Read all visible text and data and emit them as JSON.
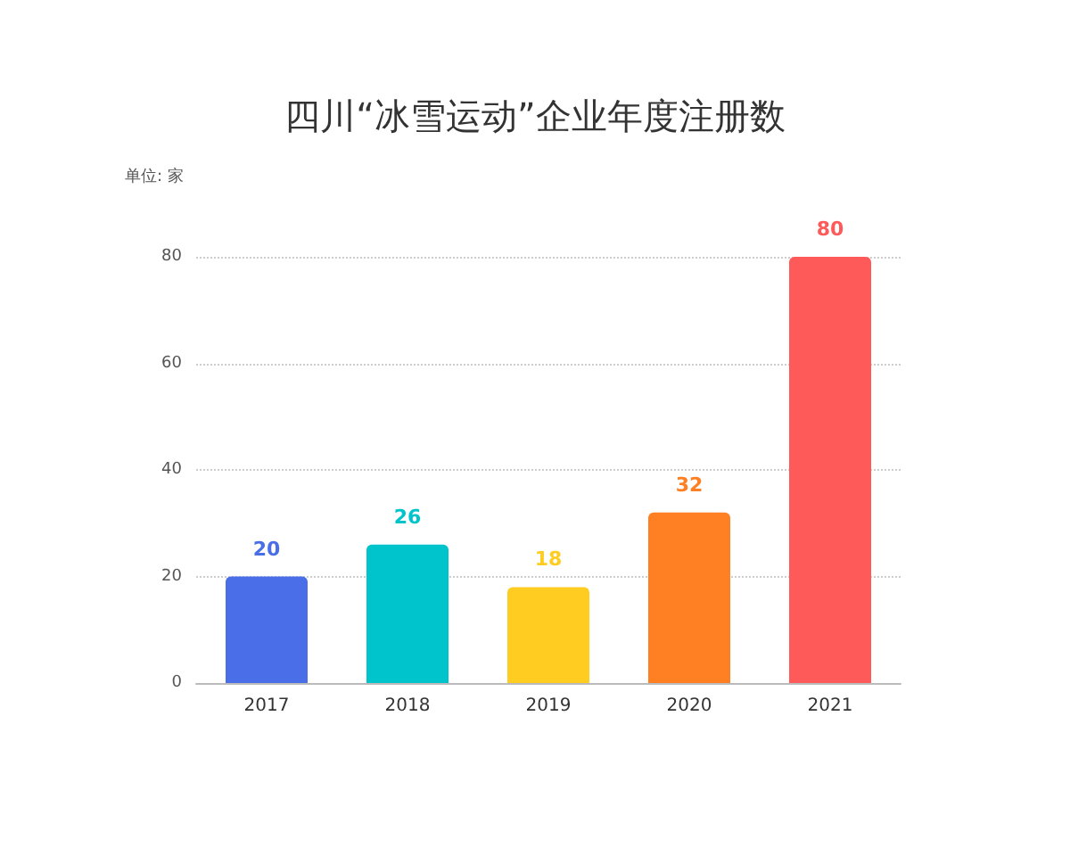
{
  "chart_data": {
    "type": "bar",
    "title": "四川“冰雪运动”企业年度注册数",
    "ylabel": "单位: 家",
    "categories": [
      "2017",
      "2018",
      "2019",
      "2020",
      "2021"
    ],
    "values": [
      20,
      26,
      18,
      32,
      80
    ],
    "colors": [
      "#4a6ee8",
      "#00c4cc",
      "#ffcc22",
      "#ff8022",
      "#ff5a5a"
    ],
    "ylim": [
      0,
      80
    ],
    "yticks": [
      0,
      20,
      40,
      60,
      80
    ],
    "grid": "y",
    "data_labels": true
  }
}
